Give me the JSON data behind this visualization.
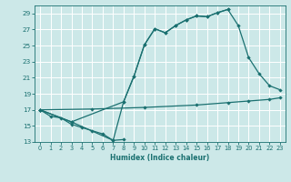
{
  "xlabel": "Humidex (Indice chaleur)",
  "background_color": "#cce8e8",
  "grid_color": "#ffffff",
  "line_color": "#1a7070",
  "xlim": [
    -0.5,
    23.5
  ],
  "ylim": [
    13,
    30
  ],
  "yticks": [
    13,
    15,
    17,
    19,
    21,
    23,
    25,
    27,
    29
  ],
  "xticks": [
    0,
    1,
    2,
    3,
    4,
    5,
    6,
    7,
    8,
    9,
    10,
    11,
    12,
    13,
    14,
    15,
    16,
    17,
    18,
    19,
    20,
    21,
    22,
    23
  ],
  "series": [
    {
      "x": [
        0,
        1,
        2,
        3,
        4,
        5,
        6,
        7,
        8
      ],
      "y": [
        17.0,
        16.2,
        16.0,
        15.2,
        14.8,
        14.4,
        14.0,
        13.2,
        13.3
      ]
    },
    {
      "x": [
        0,
        3,
        8,
        9,
        10,
        11,
        12,
        13,
        14,
        15,
        16,
        17,
        18
      ],
      "y": [
        17.0,
        15.5,
        18.0,
        21.2,
        25.1,
        27.1,
        26.6,
        27.5,
        28.2,
        28.7,
        28.6,
        29.1,
        29.5
      ]
    },
    {
      "x": [
        0,
        3,
        7,
        8,
        9,
        10,
        11,
        12,
        13,
        14,
        15,
        16,
        17,
        18,
        19,
        20,
        21,
        22,
        23
      ],
      "y": [
        17.0,
        15.5,
        13.2,
        18.0,
        21.2,
        25.1,
        27.1,
        26.6,
        27.5,
        28.2,
        28.7,
        28.6,
        29.1,
        29.5,
        27.5,
        23.5,
        21.5,
        20.0,
        19.5
      ]
    },
    {
      "x": [
        0,
        5,
        10,
        15,
        18,
        20,
        22,
        23
      ],
      "y": [
        17.0,
        17.1,
        17.3,
        17.6,
        17.9,
        18.1,
        18.3,
        18.5
      ]
    }
  ]
}
